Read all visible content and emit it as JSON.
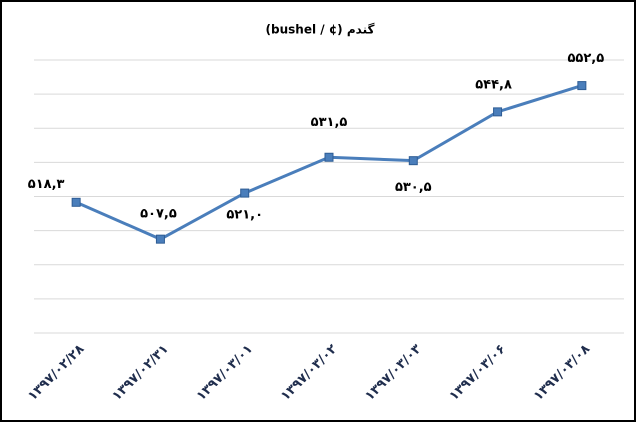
{
  "chart_data": {
    "type": "line",
    "title": "گندم (¢ / bushel)",
    "categories": [
      "۱۳۹۷/۰۲/۲۸",
      "۱۳۹۷/۰۲/۳۱",
      "۱۳۹۷/۰۳/۰۱",
      "۱۳۹۷/۰۳/۰۲",
      "۱۳۹۷/۰۳/۰۳",
      "۱۳۹۷/۰۳/۰۶",
      "۱۳۹۷/۰۳/۰۸"
    ],
    "values": [
      518.3,
      507.5,
      521.0,
      531.5,
      530.5,
      544.8,
      552.5
    ],
    "value_labels": [
      "۵۱۸,۳",
      "۵۰۷,۵",
      "۵۲۱,۰",
      "۵۳۱,۵",
      "۵۳۰,۵",
      "۵۴۴,۸",
      "۵۵۲,۵"
    ],
    "color": "#4a7ebb",
    "ylim": [
      480,
      560
    ],
    "yticks": [
      480,
      490,
      500,
      510,
      520,
      530,
      540,
      550,
      560
    ],
    "grid": true
  }
}
